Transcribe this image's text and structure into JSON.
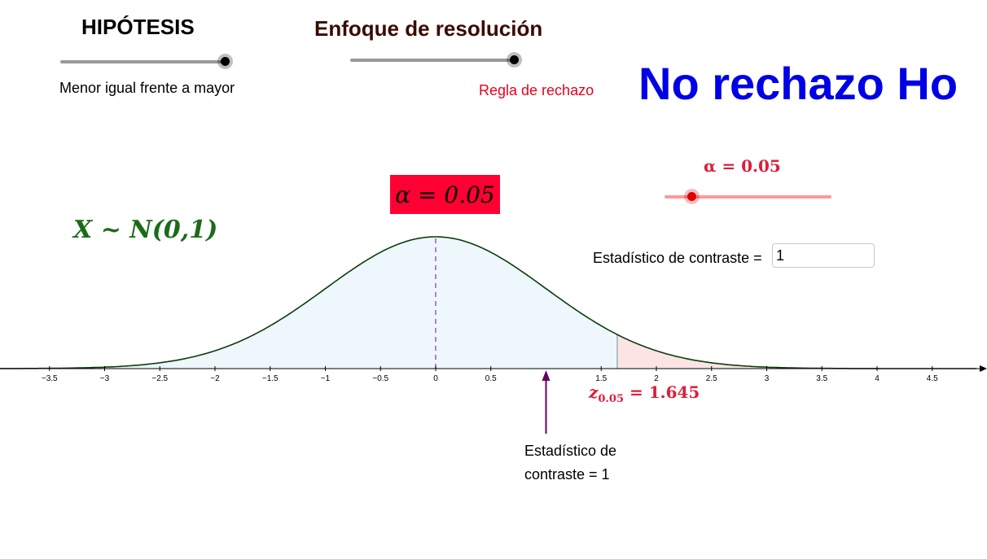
{
  "hypothesis": {
    "title": "HIPÓTESIS",
    "slider_level": 1.0,
    "caption": "Menor igual frente a mayor"
  },
  "approach": {
    "title": "Enfoque de resolución",
    "slider_level": 1.0,
    "caption": "Regla de rechazo"
  },
  "verdict": "No rechazo Ho",
  "alpha": {
    "box_text": "α = 0.05",
    "slider_label": "α = 0.05",
    "value": 0.05,
    "slider_level": 0.16
  },
  "distribution_label": "X ~ N(0,1)",
  "statistic": {
    "label": "Estadístico de contraste =",
    "value": "1",
    "arrow_label_line1": "Estadístico de",
    "arrow_label_line2": "contraste = 1"
  },
  "critical": {
    "symbol": "z",
    "subscript": "0.05",
    "value_text": "= 1.645",
    "z": 1.645
  },
  "axis": {
    "ticks": [
      "−3.5",
      "−3",
      "−2.5",
      "−2",
      "−1.5",
      "−1",
      "−0.5",
      "0",
      "0.5",
      "1.5",
      "2",
      "2.5",
      "3",
      "3.5",
      "4",
      "4.5"
    ],
    "tick_values": [
      -3.5,
      -3,
      -2.5,
      -2,
      -1.5,
      -1,
      -0.5,
      0,
      0.5,
      1.5,
      2,
      2.5,
      3,
      3.5,
      4,
      4.5
    ],
    "x_range": [
      -3.95,
      4.9
    ]
  },
  "colors": {
    "curve": "#0b3d0b",
    "accept_fill": "#eef7fc",
    "reject_fill": "#fde4e4",
    "mean_line": "#9966cc",
    "arrow": "#660066",
    "verdict": "#0000e6",
    "alpha_box": "#ff0033",
    "accent_red": "#e01c3c"
  }
}
